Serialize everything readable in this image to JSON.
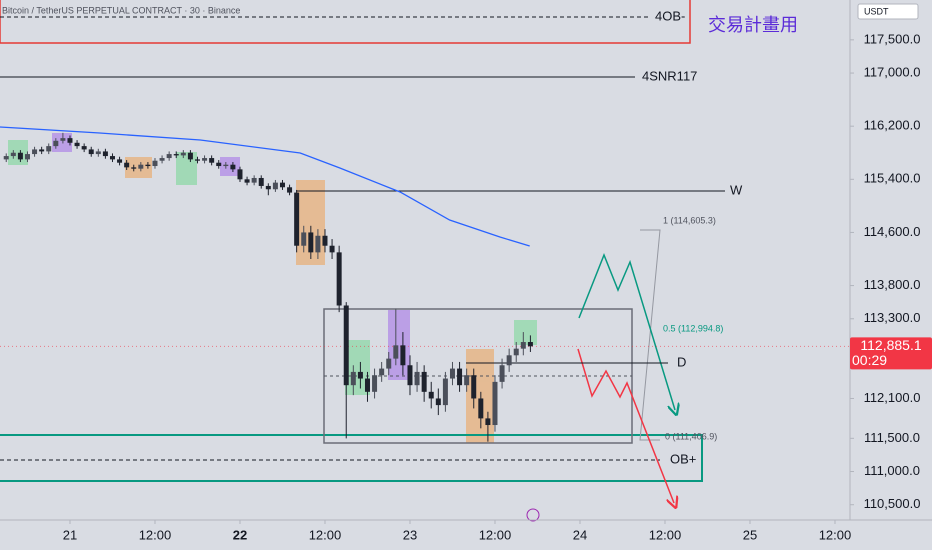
{
  "chart_data": {
    "type": "candlestick",
    "title": "Bitcoin / TetherUS PERPETUAL CONTRACT · 30 · Binance",
    "plan_title": "交易計畫用",
    "currency": "USDT",
    "up_color": "#4b4f5a",
    "down_color": "#1e222d",
    "ylim": [
      110270,
      118100
    ],
    "yticks": [
      {
        "value": 117500,
        "label": "117,500.0"
      },
      {
        "value": 117000,
        "label": "117,000.0"
      },
      {
        "value": 116200,
        "label": "116,200.0"
      },
      {
        "value": 115400,
        "label": "115,400.0"
      },
      {
        "value": 114600,
        "label": "114,600.0"
      },
      {
        "value": 113800,
        "label": "113,800.0"
      },
      {
        "value": 113300,
        "label": "113,300.0"
      },
      {
        "value": 112100,
        "label": "112,100.0"
      },
      {
        "value": 111500,
        "label": "111,500.0"
      },
      {
        "value": 111000,
        "label": "111,000.0"
      },
      {
        "value": 110500,
        "label": "110,500.0"
      }
    ],
    "xlim": [
      -9.88,
      110.12
    ],
    "xticks": [
      {
        "value": 0,
        "label": "21"
      },
      {
        "value": 12,
        "label": "12:00"
      },
      {
        "value": 24,
        "label": "22"
      },
      {
        "value": 36,
        "label": "12:00"
      },
      {
        "value": 48,
        "label": "23"
      },
      {
        "value": 60,
        "label": "12:00"
      },
      {
        "value": 72,
        "label": "24"
      },
      {
        "value": 84,
        "label": "12:00"
      },
      {
        "value": 96,
        "label": "25"
      },
      {
        "value": 108,
        "label": "12:00"
      }
    ],
    "x": [
      -9,
      -8,
      -7,
      -6,
      -5,
      -4,
      -3,
      -2,
      -1,
      0,
      1,
      2,
      3,
      4,
      5,
      6,
      7,
      8,
      9,
      10,
      11,
      12,
      13,
      14,
      15,
      16,
      17,
      18,
      19,
      20,
      21,
      22,
      23,
      24,
      25,
      26,
      27,
      28,
      29,
      30,
      31,
      32,
      33,
      34,
      35,
      36,
      37,
      38,
      39,
      40,
      41,
      42,
      43,
      44,
      45,
      46,
      47,
      48,
      49,
      50,
      51,
      52,
      53,
      54,
      55,
      56,
      57,
      58,
      59,
      60,
      61,
      62,
      63,
      64,
      65
    ],
    "open": [
      115700,
      115750,
      115800,
      115700,
      115780,
      115850,
      115820,
      115900,
      115980,
      116020,
      115950,
      115900,
      115850,
      115780,
      115820,
      115750,
      115700,
      115650,
      115580,
      115560,
      115620,
      115600,
      115680,
      115720,
      115780,
      115760,
      115800,
      115700,
      115680,
      115720,
      115650,
      115600,
      115620,
      115550,
      115400,
      115350,
      115420,
      115300,
      115250,
      115350,
      115280,
      115200,
      114400,
      114600,
      114300,
      114550,
      114400,
      114300,
      113500,
      112300,
      112500,
      112400,
      112200,
      112450,
      112550,
      112700,
      112900,
      112600,
      112300,
      112500,
      112200,
      112100,
      112000,
      112400,
      112550,
      112300,
      112450,
      112100,
      111800,
      111700,
      112350,
      112600,
      112750,
      112850,
      112950
    ],
    "high": [
      115790,
      115840,
      115840,
      115820,
      115890,
      115890,
      115940,
      116020,
      116100,
      116060,
      115990,
      115940,
      115890,
      115860,
      115860,
      115790,
      115740,
      115690,
      115620,
      115660,
      115660,
      115720,
      115760,
      115820,
      115820,
      115840,
      115840,
      115740,
      115760,
      115760,
      115690,
      115660,
      115660,
      115590,
      115440,
      115460,
      115460,
      115340,
      115390,
      115390,
      115320,
      115240,
      114700,
      114700,
      114650,
      114650,
      114500,
      114400,
      113550,
      112600,
      112650,
      112500,
      112550,
      112650,
      112800,
      113450,
      113100,
      112750,
      112650,
      112600,
      112350,
      112250,
      112500,
      112650,
      112650,
      112550,
      112550,
      112200,
      111900,
      112450,
      112700,
      112850,
      112950,
      113100,
      113050
    ],
    "low": [
      115660,
      115710,
      115660,
      115660,
      115740,
      115780,
      115780,
      115860,
      115940,
      115910,
      115860,
      115810,
      115740,
      115740,
      115710,
      115660,
      115610,
      115540,
      115520,
      115520,
      115560,
      115560,
      115640,
      115680,
      115720,
      115720,
      115660,
      115640,
      115640,
      115610,
      115560,
      115560,
      115510,
      115360,
      115310,
      115310,
      115260,
      115160,
      115210,
      115240,
      115160,
      114300,
      114300,
      114200,
      114200,
      114300,
      114200,
      113400,
      111500,
      112150,
      112250,
      112050,
      112100,
      112350,
      112450,
      112600,
      112450,
      112150,
      112200,
      112050,
      111950,
      111850,
      111900,
      112300,
      112200,
      112200,
      111950,
      111650,
      111450,
      111600,
      112250,
      112500,
      112650,
      112750,
      112800
    ],
    "close": [
      115750,
      115800,
      115700,
      115780,
      115850,
      115820,
      115900,
      115980,
      116020,
      115950,
      115900,
      115850,
      115780,
      115820,
      115750,
      115700,
      115650,
      115580,
      115560,
      115620,
      115600,
      115680,
      115720,
      115780,
      115760,
      115800,
      115700,
      115680,
      115720,
      115650,
      115600,
      115620,
      115550,
      115400,
      115350,
      115420,
      115300,
      115250,
      115350,
      115280,
      115200,
      114400,
      114600,
      114300,
      114550,
      114400,
      114300,
      113500,
      112300,
      112500,
      112400,
      112200,
      112450,
      112550,
      112700,
      112900,
      112600,
      112300,
      112500,
      112200,
      112100,
      112000,
      112400,
      112550,
      112300,
      112450,
      112100,
      111800,
      111700,
      112350,
      112600,
      112750,
      112850,
      112950,
      112885.1
    ],
    "ma": {
      "color": "#2962ff",
      "x": [
        -9.9,
        4.2,
        18.4,
        32.5,
        38.1,
        46.6,
        53.6,
        60.7,
        64.9
      ],
      "values": [
        116188,
        116097,
        115992,
        115796,
        115570,
        115209,
        114787,
        114531,
        114396
      ]
    },
    "levels": [
      {
        "label": "4OB-",
        "value": 117844
      },
      {
        "label": "4SNR117",
        "value": 116940
      },
      {
        "label": "W",
        "value": 115224
      },
      {
        "label": "D",
        "value": 112634
      },
      {
        "label": "OB+",
        "value": 111173
      }
    ],
    "fib_labels": [
      "1 (114,605.3)",
      "0.5 (112,994.8)",
      "0 (111,406.9)"
    ],
    "last_price": {
      "value": 112885.1,
      "label": "112,885.1",
      "countdown": "00:29"
    }
  }
}
